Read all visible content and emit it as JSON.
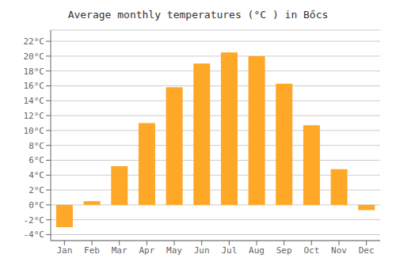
{
  "chart_data": {
    "type": "bar",
    "title": "Average monthly temperatures (°C ) in Bőcs",
    "categories": [
      "Jan",
      "Feb",
      "Mar",
      "Apr",
      "May",
      "Jun",
      "Jul",
      "Aug",
      "Sep",
      "Oct",
      "Nov",
      "Dec"
    ],
    "values": [
      -3.0,
      0.5,
      5.2,
      11.0,
      15.8,
      19.0,
      20.5,
      20.0,
      16.3,
      10.7,
      4.8,
      -0.7
    ],
    "color": "#FFA726",
    "ylim": [
      -4.8,
      23.5
    ],
    "yticks": [
      {
        "value": 22,
        "label": "22°C"
      },
      {
        "value": 20,
        "label": "20°C"
      },
      {
        "value": 18,
        "label": "18°C"
      },
      {
        "value": 16,
        "label": "16°C"
      },
      {
        "value": 14,
        "label": "14°C"
      },
      {
        "value": 12,
        "label": "12°C"
      },
      {
        "value": 10,
        "label": "10°C"
      },
      {
        "value": 8,
        "label": "8°C"
      },
      {
        "value": 6,
        "label": "6°C"
      },
      {
        "value": 4,
        "label": "4°C"
      },
      {
        "value": 2,
        "label": "2°C"
      },
      {
        "value": 0,
        "label": "0°C"
      },
      {
        "value": -2,
        "label": "-2°C"
      },
      {
        "value": -4,
        "label": "-4°C"
      }
    ],
    "grid": true
  }
}
